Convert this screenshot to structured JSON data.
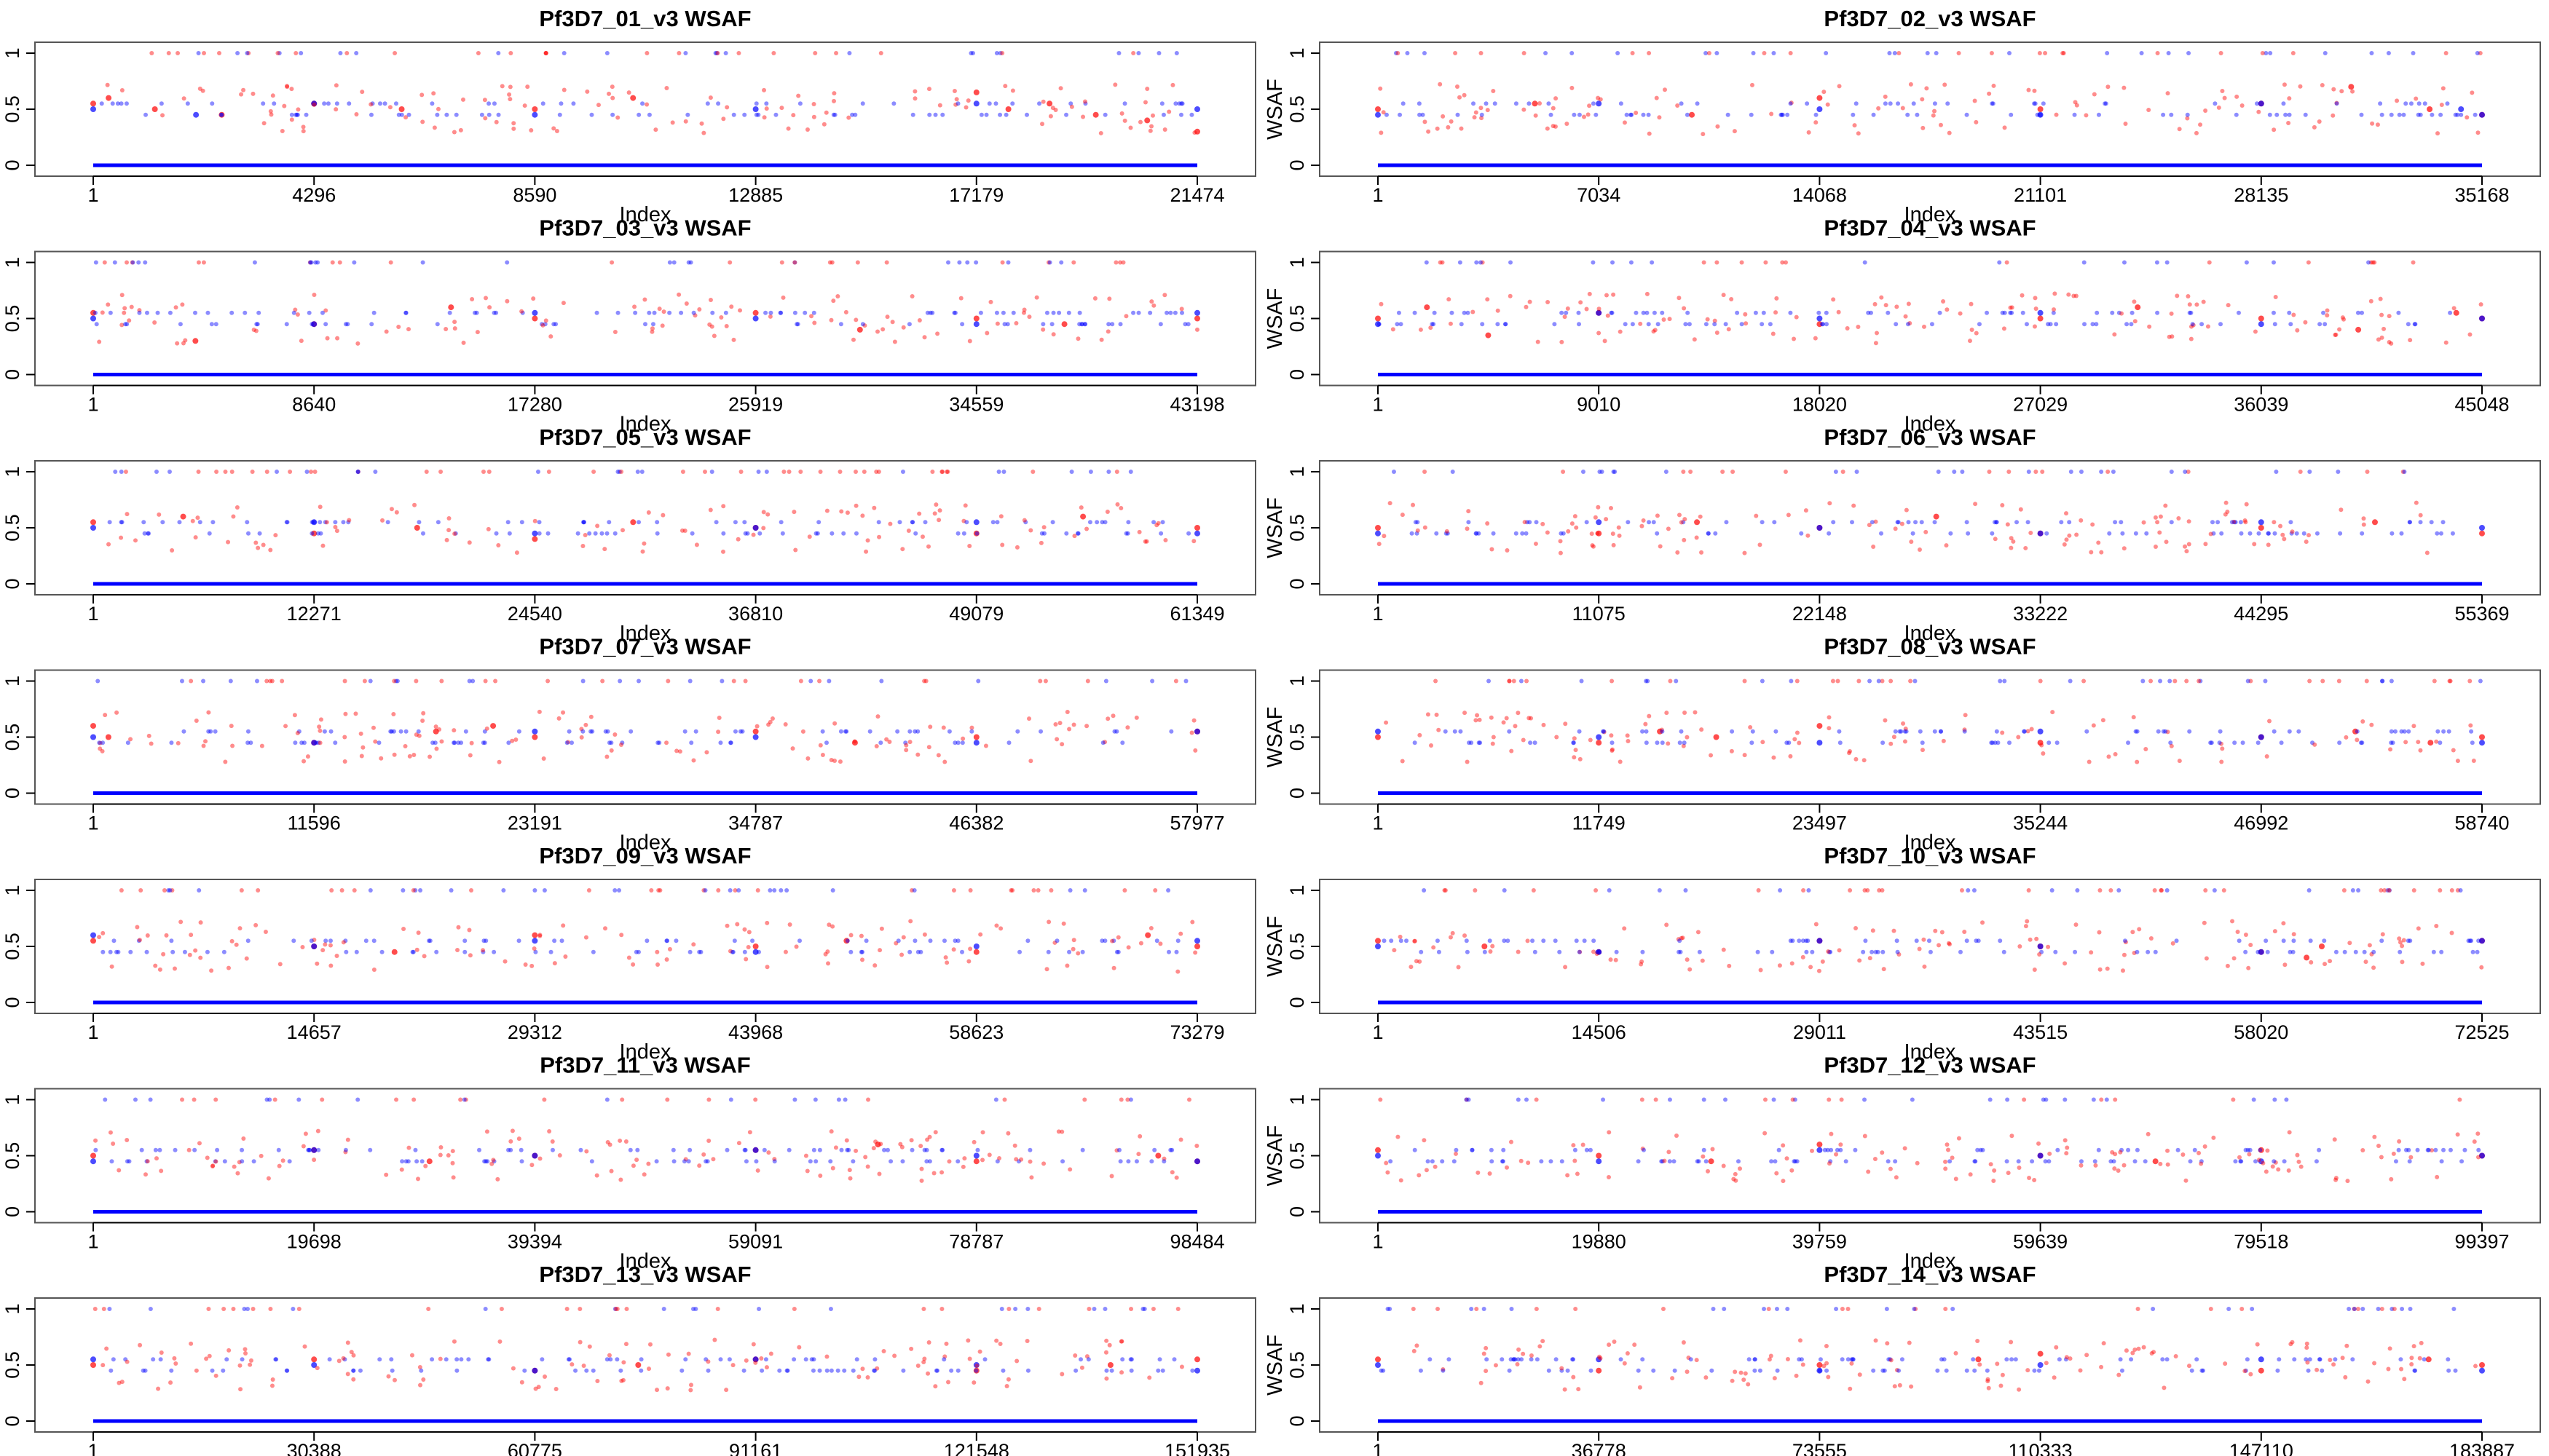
{
  "figure": {
    "columns": 2,
    "rows": 7,
    "colors": {
      "scatter_red": "#ff0000",
      "scatter_blue": "#0000ff",
      "frame": "#555555",
      "text": "#000000",
      "background": "#ffffff"
    }
  },
  "chart_data": [
    {
      "type": "scatter",
      "title": "Pf3D7_01_v3 WSAF",
      "xlabel": "Index",
      "ylabel": "WSAF",
      "xlim": [
        1,
        21474
      ],
      "ylim": [
        0,
        1
      ],
      "xticks": [
        "1",
        "4296",
        "8590",
        "12885",
        "17179",
        "21474"
      ],
      "yticks": [
        "0",
        "0.5",
        "1"
      ],
      "grid": false,
      "legend": "none",
      "series": [
        {
          "color": "#ff0000",
          "x": [
            1,
            300,
            1200,
            2500,
            4296,
            6000,
            8590,
            10500,
            17179,
            17800,
            18600,
            19500,
            20500,
            21474
          ],
          "y": [
            0.55,
            0.6,
            0.5,
            0.45,
            0.55,
            0.5,
            0.5,
            0.6,
            0.65,
            0.5,
            0.55,
            0.45,
            0.4,
            0.3
          ]
        },
        {
          "color": "#0000ff",
          "x": [
            1,
            2000,
            4296,
            8590,
            12885,
            17179,
            21474
          ],
          "y": [
            0.5,
            0.45,
            0.55,
            0.45,
            0.5,
            0.55,
            0.5
          ]
        }
      ]
    },
    {
      "type": "scatter",
      "title": "Pf3D7_02_v3 WSAF",
      "xlabel": "Index",
      "ylabel": "WSAF",
      "xlim": [
        1,
        35168
      ],
      "ylim": [
        0,
        1
      ],
      "xticks": [
        "1",
        "7034",
        "14068",
        "21101",
        "28135",
        "35168"
      ],
      "yticks": [
        "0",
        "0.5",
        "1"
      ],
      "grid": false,
      "legend": "none",
      "series": [
        {
          "color": "#ff0000",
          "x": [
            1,
            5000,
            10000,
            14068,
            21101,
            28135,
            31000,
            33500,
            35168
          ],
          "y": [
            0.5,
            0.55,
            0.45,
            0.6,
            0.5,
            0.55,
            0.7,
            0.5,
            0.45
          ]
        },
        {
          "color": "#0000ff",
          "x": [
            1,
            7034,
            14068,
            21101,
            28135,
            34500,
            35168
          ],
          "y": [
            0.45,
            0.55,
            0.5,
            0.45,
            0.55,
            0.5,
            0.45
          ]
        }
      ]
    },
    {
      "type": "scatter",
      "title": "Pf3D7_03_v3 WSAF",
      "xlabel": "Index",
      "ylabel": "WSAF",
      "xlim": [
        1,
        43198
      ],
      "ylim": [
        0,
        1
      ],
      "xticks": [
        "1",
        "8640",
        "17280",
        "25919",
        "34559",
        "43198"
      ],
      "yticks": [
        "0",
        "0.5",
        "1"
      ],
      "grid": false,
      "legend": "none",
      "series": [
        {
          "color": "#ff0000",
          "x": [
            1,
            4000,
            8640,
            14000,
            17280,
            25919,
            30000,
            34559,
            38000,
            43198
          ],
          "y": [
            0.55,
            0.3,
            0.45,
            0.6,
            0.5,
            0.55,
            0.4,
            0.5,
            0.45,
            0.5
          ]
        },
        {
          "color": "#0000ff",
          "x": [
            1,
            8640,
            17280,
            25919,
            34559,
            43198
          ],
          "y": [
            0.5,
            0.45,
            0.55,
            0.5,
            0.45,
            0.55
          ]
        }
      ]
    },
    {
      "type": "scatter",
      "title": "Pf3D7_04_v3 WSAF",
      "xlabel": "Index",
      "ylabel": "WSAF",
      "xlim": [
        1,
        45048
      ],
      "ylim": [
        0,
        1
      ],
      "xticks": [
        "1",
        "9010",
        "18020",
        "27029",
        "36039",
        "45048"
      ],
      "yticks": [
        "0",
        "0.5",
        "1"
      ],
      "grid": false,
      "legend": "none",
      "series": [
        {
          "color": "#ff0000",
          "x": [
            1,
            2000,
            4500,
            9010,
            18020,
            27029,
            31000,
            36039,
            40000,
            44000,
            45048
          ],
          "y": [
            0.5,
            0.6,
            0.35,
            0.55,
            0.45,
            0.5,
            0.6,
            0.5,
            0.4,
            0.55,
            0.5
          ]
        },
        {
          "color": "#0000ff",
          "x": [
            1,
            9010,
            18020,
            27029,
            36039,
            45048
          ],
          "y": [
            0.45,
            0.55,
            0.5,
            0.55,
            0.45,
            0.5
          ]
        }
      ]
    },
    {
      "type": "scatter",
      "title": "Pf3D7_05_v3 WSAF",
      "xlabel": "Index",
      "ylabel": "WSAF",
      "xlim": [
        1,
        61349
      ],
      "ylim": [
        0,
        1
      ],
      "xticks": [
        "1",
        "12271",
        "24540",
        "36810",
        "49079",
        "61349"
      ],
      "yticks": [
        "0",
        "0.5",
        "1"
      ],
      "grid": false,
      "legend": "none",
      "series": [
        {
          "color": "#ff0000",
          "x": [
            1,
            5000,
            12271,
            18000,
            24540,
            30000,
            36810,
            49079,
            55000,
            61349
          ],
          "y": [
            0.55,
            0.6,
            0.45,
            0.5,
            0.4,
            0.55,
            0.5,
            0.45,
            0.6,
            0.5
          ]
        },
        {
          "color": "#0000ff",
          "x": [
            1,
            12271,
            24540,
            36810,
            49079,
            61349
          ],
          "y": [
            0.5,
            0.55,
            0.45,
            0.5,
            0.55,
            0.45
          ]
        }
      ]
    },
    {
      "type": "scatter",
      "title": "Pf3D7_06_v3 WSAF",
      "xlabel": "Index",
      "ylabel": "WSAF",
      "xlim": [
        1,
        55369
      ],
      "ylim": [
        0,
        1
      ],
      "xticks": [
        "1",
        "11075",
        "22148",
        "33222",
        "44295",
        "55369"
      ],
      "yticks": [
        "0",
        "0.5",
        "1"
      ],
      "grid": false,
      "legend": "none",
      "series": [
        {
          "color": "#ff0000",
          "x": [
            1,
            11075,
            16000,
            22148,
            28000,
            33222,
            44295,
            50000,
            55369
          ],
          "y": [
            0.5,
            0.45,
            0.55,
            0.5,
            0.6,
            0.45,
            0.5,
            0.55,
            0.45
          ]
        },
        {
          "color": "#0000ff",
          "x": [
            1,
            11075,
            22148,
            33222,
            44295,
            55369
          ],
          "y": [
            0.45,
            0.55,
            0.5,
            0.45,
            0.55,
            0.5
          ]
        }
      ]
    },
    {
      "type": "scatter",
      "title": "Pf3D7_07_v3 WSAF",
      "xlabel": "Index",
      "ylabel": "WSAF",
      "xlim": [
        1,
        57977
      ],
      "ylim": [
        0,
        1
      ],
      "xticks": [
        "1",
        "11596",
        "23191",
        "34787",
        "46382",
        "57977"
      ],
      "yticks": [
        "0",
        "0.5",
        "1"
      ],
      "grid": false,
      "legend": "none",
      "series": [
        {
          "color": "#ff0000",
          "x": [
            1,
            800,
            11596,
            18000,
            21000,
            23191,
            34787,
            40000,
            46382,
            57977
          ],
          "y": [
            0.6,
            0.5,
            0.45,
            0.55,
            0.6,
            0.5,
            0.55,
            0.45,
            0.5,
            0.55
          ]
        },
        {
          "color": "#0000ff",
          "x": [
            1,
            11596,
            23191,
            34787,
            46382,
            57977
          ],
          "y": [
            0.5,
            0.45,
            0.55,
            0.5,
            0.45,
            0.55
          ]
        }
      ]
    },
    {
      "type": "scatter",
      "title": "Pf3D7_08_v3 WSAF",
      "xlabel": "Index",
      "ylabel": "WSAF",
      "xlim": [
        1,
        58740
      ],
      "ylim": [
        0,
        1
      ],
      "xticks": [
        "1",
        "11749",
        "23497",
        "35244",
        "46992",
        "58740"
      ],
      "yticks": [
        "0",
        "0.5",
        "1"
      ],
      "grid": false,
      "legend": "none",
      "series": [
        {
          "color": "#ff0000",
          "x": [
            1,
            11749,
            15000,
            18000,
            23497,
            35244,
            46992,
            52000,
            56000,
            58740
          ],
          "y": [
            0.5,
            0.45,
            0.55,
            0.5,
            0.6,
            0.45,
            0.5,
            0.55,
            0.45,
            0.5
          ]
        },
        {
          "color": "#0000ff",
          "x": [
            1,
            11749,
            23497,
            35244,
            46992,
            58740
          ],
          "y": [
            0.55,
            0.5,
            0.45,
            0.55,
            0.5,
            0.45
          ]
        }
      ]
    },
    {
      "type": "scatter",
      "title": "Pf3D7_09_v3 WSAF",
      "xlabel": "Index",
      "ylabel": "WSAF",
      "xlim": [
        1,
        73279
      ],
      "ylim": [
        0,
        1
      ],
      "xticks": [
        "1",
        "14657",
        "29312",
        "43968",
        "58623",
        "73279"
      ],
      "yticks": [
        "0",
        "0.5",
        "1"
      ],
      "grid": false,
      "legend": "none",
      "series": [
        {
          "color": "#ff0000",
          "x": [
            1,
            14657,
            20000,
            29312,
            43968,
            50000,
            58623,
            70000,
            73279
          ],
          "y": [
            0.55,
            0.5,
            0.45,
            0.6,
            0.5,
            0.55,
            0.45,
            0.6,
            0.5
          ]
        },
        {
          "color": "#0000ff",
          "x": [
            1,
            14657,
            29312,
            43968,
            58623,
            73279
          ],
          "y": [
            0.6,
            0.5,
            0.55,
            0.45,
            0.5,
            0.55
          ]
        }
      ]
    },
    {
      "type": "scatter",
      "title": "Pf3D7_10_v3 WSAF",
      "xlabel": "Index",
      "ylabel": "WSAF",
      "xlim": [
        1,
        72525
      ],
      "ylim": [
        0,
        1
      ],
      "xticks": [
        "1",
        "14506",
        "29011",
        "43515",
        "58020",
        "72525"
      ],
      "yticks": [
        "0",
        "0.5",
        "1"
      ],
      "grid": false,
      "legend": "none",
      "series": [
        {
          "color": "#ff0000",
          "x": [
            1,
            7000,
            14506,
            29011,
            43515,
            58020,
            61000,
            62000,
            72525
          ],
          "y": [
            0.55,
            0.5,
            0.45,
            0.55,
            0.5,
            0.45,
            0.4,
            0.5,
            0.55
          ]
        },
        {
          "color": "#0000ff",
          "x": [
            1,
            14506,
            29011,
            43515,
            58020,
            72525
          ],
          "y": [
            0.5,
            0.45,
            0.55,
            0.5,
            0.45,
            0.55
          ]
        }
      ]
    },
    {
      "type": "scatter",
      "title": "Pf3D7_11_v3 WSAF",
      "xlabel": "Index",
      "ylabel": "WSAF",
      "xlim": [
        1,
        98484
      ],
      "ylim": [
        0,
        1
      ],
      "xticks": [
        "1",
        "19698",
        "39394",
        "59091",
        "78787",
        "98484"
      ],
      "yticks": [
        "0",
        "0.5",
        "1"
      ],
      "grid": false,
      "legend": "none",
      "series": [
        {
          "color": "#ff0000",
          "x": [
            1,
            19698,
            30000,
            39394,
            59091,
            70000,
            78787,
            95000,
            98484
          ],
          "y": [
            0.5,
            0.55,
            0.45,
            0.5,
            0.55,
            0.6,
            0.45,
            0.5,
            0.45
          ]
        },
        {
          "color": "#0000ff",
          "x": [
            1,
            19698,
            39394,
            59091,
            78787,
            98484
          ],
          "y": [
            0.45,
            0.55,
            0.5,
            0.55,
            0.5,
            0.45
          ]
        }
      ]
    },
    {
      "type": "scatter",
      "title": "Pf3D7_12_v3 WSAF",
      "xlabel": "Index",
      "ylabel": "WSAF",
      "xlim": [
        1,
        99397
      ],
      "ylim": [
        0,
        1
      ],
      "xticks": [
        "1",
        "19880",
        "39759",
        "59639",
        "79518",
        "99397"
      ],
      "yticks": [
        "0",
        "0.5",
        "1"
      ],
      "grid": false,
      "legend": "none",
      "series": [
        {
          "color": "#ff0000",
          "x": [
            1,
            19880,
            30000,
            39759,
            59639,
            70000,
            79518,
            99397
          ],
          "y": [
            0.55,
            0.5,
            0.45,
            0.6,
            0.5,
            0.45,
            0.55,
            0.5
          ]
        },
        {
          "color": "#0000ff",
          "x": [
            1,
            19880,
            39759,
            59639,
            79518,
            99397
          ],
          "y": [
            0.5,
            0.45,
            0.55,
            0.5,
            0.45,
            0.5
          ]
        }
      ]
    },
    {
      "type": "scatter",
      "title": "Pf3D7_13_v3 WSAF",
      "xlabel": "Index",
      "ylabel": "WSAF",
      "xlim": [
        1,
        151935
      ],
      "ylim": [
        0,
        1
      ],
      "xticks": [
        "1",
        "30388",
        "60775",
        "91161",
        "121548",
        "151935"
      ],
      "yticks": [
        "0",
        "0.5",
        "1"
      ],
      "grid": false,
      "legend": "none",
      "series": [
        {
          "color": "#ff0000",
          "x": [
            1,
            30388,
            60775,
            75000,
            91161,
            121548,
            140000,
            151935
          ],
          "y": [
            0.5,
            0.55,
            0.45,
            0.5,
            0.55,
            0.45,
            0.5,
            0.55
          ]
        },
        {
          "color": "#0000ff",
          "x": [
            1,
            30388,
            60775,
            91161,
            121548,
            151935
          ],
          "y": [
            0.55,
            0.5,
            0.45,
            0.55,
            0.5,
            0.45
          ]
        }
      ]
    },
    {
      "type": "scatter",
      "title": "Pf3D7_14_v3 WSAF",
      "xlabel": "Index",
      "ylabel": "WSAF",
      "xlim": [
        1,
        183887
      ],
      "ylim": [
        0,
        1
      ],
      "xticks": [
        "1",
        "36778",
        "73555",
        "110333",
        "147110",
        "183887"
      ],
      "yticks": [
        "0",
        "0.5",
        "1"
      ],
      "grid": false,
      "legend": "none",
      "series": [
        {
          "color": "#ff0000",
          "x": [
            1,
            36778,
            73555,
            100000,
            110333,
            147110,
            175000,
            183887
          ],
          "y": [
            0.55,
            0.45,
            0.5,
            0.55,
            0.6,
            0.45,
            0.55,
            0.5
          ]
        },
        {
          "color": "#0000ff",
          "x": [
            1,
            36778,
            73555,
            110333,
            147110,
            183887
          ],
          "y": [
            0.5,
            0.55,
            0.45,
            0.5,
            0.55,
            0.45
          ]
        }
      ]
    }
  ]
}
